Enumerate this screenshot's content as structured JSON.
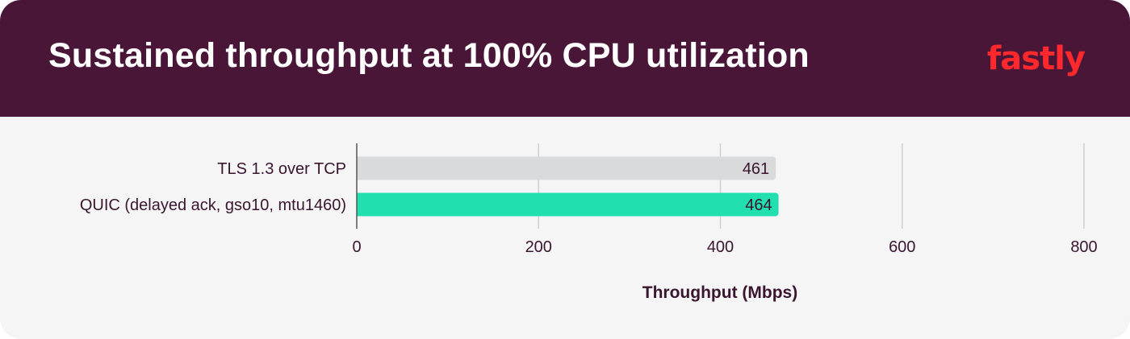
{
  "header": {
    "title": "Sustained throughput at 100% CPU utilization",
    "logo_text": "fastly",
    "background_color": "#4a1638",
    "logo_color": "#ff282d"
  },
  "chart_data": {
    "type": "bar",
    "orientation": "horizontal",
    "title": "Sustained throughput at 100% CPU utilization",
    "xlabel": "Throughput (Mbps)",
    "ylabel": "",
    "xlim": [
      0,
      800
    ],
    "x_ticks": [
      0,
      200,
      400,
      600,
      800
    ],
    "grid": "vertical",
    "categories": [
      "TLS 1.3 over TCP",
      "QUIC (delayed ack, gso10, mtu1460)"
    ],
    "values": [
      461,
      464
    ],
    "data_labels": [
      "461",
      "464"
    ],
    "colors": [
      "#d9dadc",
      "#22dfaf"
    ]
  }
}
